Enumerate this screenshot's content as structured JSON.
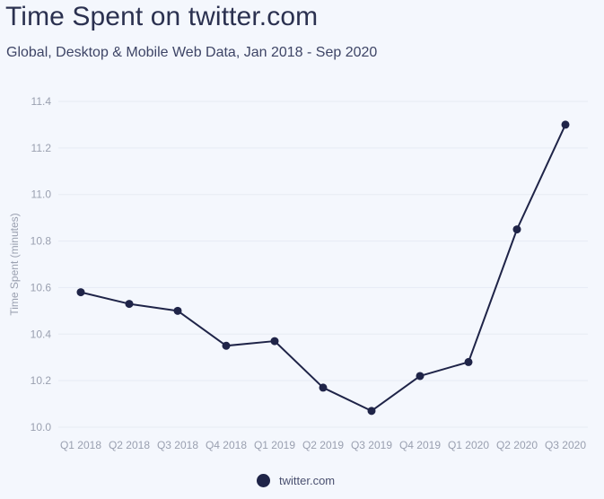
{
  "header": {
    "title": "Time Spent on twitter.com",
    "subtitle": "Global, Desktop & Mobile Web Data, Jan 2018 - Sep 2020"
  },
  "colors": {
    "background": "#f4f7fd",
    "series": "#1f2448",
    "grid": "#e6ebf4",
    "tick_text": "#9aa0b0",
    "title": "#2b3150"
  },
  "chart_data": {
    "type": "line",
    "title": "Time Spent on twitter.com",
    "subtitle": "Global, Desktop & Mobile Web Data, Jan 2018 - Sep 2020",
    "xlabel": "",
    "ylabel": "Time Spent (minutes)",
    "categories": [
      "Q1 2018",
      "Q2 2018",
      "Q3 2018",
      "Q4 2018",
      "Q1 2019",
      "Q2 2019",
      "Q3 2019",
      "Q4 2019",
      "Q1 2020",
      "Q2 2020",
      "Q3 2020"
    ],
    "series": [
      {
        "name": "twitter.com",
        "values": [
          10.58,
          10.53,
          10.5,
          10.35,
          10.37,
          10.17,
          10.07,
          10.22,
          10.28,
          10.85,
          11.3
        ]
      }
    ],
    "ylim": [
      10.0,
      11.4
    ],
    "yticks": [
      "10.0",
      "10.2",
      "10.4",
      "10.6",
      "10.8",
      "11.0",
      "11.2",
      "11.4"
    ],
    "grid": true,
    "legend_position": "bottom-center",
    "markers": true
  }
}
